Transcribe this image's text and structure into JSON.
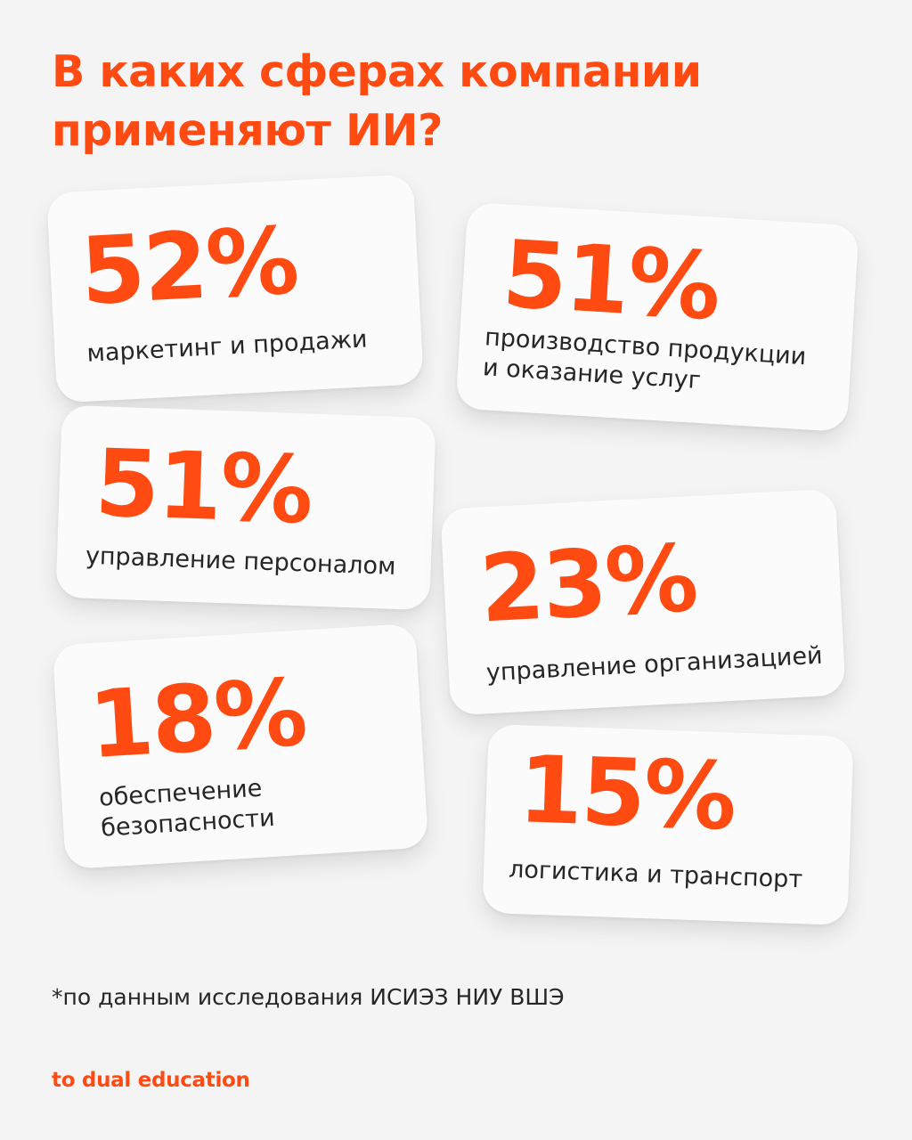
{
  "title": "В каких сферах компании\nприменяют ИИ?",
  "cards": [
    {
      "percent": "52%",
      "label": "маркетинг и продажи"
    },
    {
      "percent": "51%",
      "label": "производство продукции\nи оказание услуг"
    },
    {
      "percent": "51%",
      "label": "управление персоналом"
    },
    {
      "percent": "23%",
      "label": "управление организацией"
    },
    {
      "percent": "18%",
      "label": "обеспечение\nбезопасности"
    },
    {
      "percent": "15%",
      "label": "логистика и транспорт"
    }
  ],
  "footnote": "*по данным исследования ИСИЭЗ НИУ ВШЭ",
  "brand": "to dual education",
  "colors": {
    "accent": "#ff4a12",
    "background": "#f4f4f4",
    "card": "#fbfbfb",
    "text": "#262626"
  }
}
